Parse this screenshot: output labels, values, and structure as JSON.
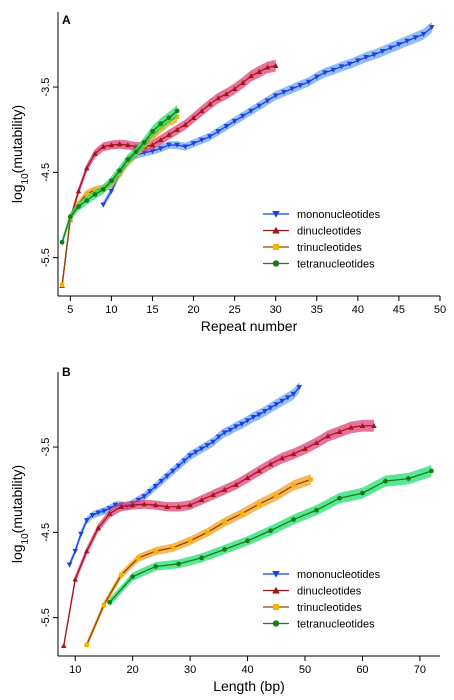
{
  "colors": {
    "mono": "#1f3fe8",
    "mono_band": "#6fa8f0",
    "di": "#a01818",
    "di_band": "#e0407a",
    "tri": "#f3b400",
    "tri_line": "#8a4a00",
    "tri_band": "#f6a020",
    "tetra": "#1a7a1a",
    "tetra_band": "#20e070"
  },
  "chart_data": [
    {
      "type": "line",
      "panel_label": "A",
      "xlabel": "Repeat number",
      "ylabel": "log10(mutability)",
      "ylabel_parts": {
        "pre": "log",
        "sub": "10",
        "post": "(mutability)"
      },
      "xlim": [
        3.5,
        50
      ],
      "ylim": [
        -5.95,
        -2.62
      ],
      "xticks": [
        5,
        10,
        15,
        20,
        25,
        30,
        35,
        40,
        45,
        50
      ],
      "yticks": [
        -5.5,
        -4.5,
        -3.5
      ],
      "ytick_labels": [
        "-5.5",
        "-4.5",
        "-3.5"
      ],
      "legend_position": "bottom-right",
      "series": [
        {
          "name": "mononucleotides",
          "key": "mono",
          "marker": "triangle-down",
          "x": [
            9,
            10,
            11,
            12,
            13,
            14,
            15,
            16,
            17,
            18,
            19,
            20,
            21,
            22,
            23,
            24,
            25,
            26,
            27,
            28,
            29,
            30,
            31,
            32,
            33,
            34,
            35,
            36,
            37,
            38,
            39,
            40,
            41,
            42,
            43,
            44,
            45,
            46,
            47,
            48,
            49
          ],
          "y": [
            -4.88,
            -4.72,
            -4.52,
            -4.36,
            -4.3,
            -4.27,
            -4.25,
            -4.22,
            -4.18,
            -4.18,
            -4.2,
            -4.16,
            -4.12,
            -4.08,
            -4.02,
            -3.96,
            -3.9,
            -3.84,
            -3.78,
            -3.72,
            -3.66,
            -3.6,
            -3.56,
            -3.52,
            -3.48,
            -3.44,
            -3.38,
            -3.33,
            -3.3,
            -3.26,
            -3.23,
            -3.19,
            -3.15,
            -3.12,
            -3.08,
            -3.04,
            -3.0,
            -2.96,
            -2.92,
            -2.88,
            -2.8
          ]
        },
        {
          "name": "dinucleotides",
          "key": "di",
          "marker": "triangle-up",
          "x": [
            4,
            5,
            6,
            7,
            8,
            9,
            10,
            11,
            12,
            13,
            14,
            15,
            16,
            17,
            18,
            19,
            20,
            21,
            22,
            23,
            24,
            25,
            26,
            27,
            28,
            29,
            30
          ],
          "y": [
            -5.83,
            -5.05,
            -4.72,
            -4.45,
            -4.28,
            -4.2,
            -4.18,
            -4.17,
            -4.18,
            -4.2,
            -4.2,
            -4.18,
            -4.12,
            -4.06,
            -4.0,
            -3.94,
            -3.86,
            -3.78,
            -3.7,
            -3.63,
            -3.58,
            -3.52,
            -3.45,
            -3.37,
            -3.32,
            -3.27,
            -3.25
          ]
        },
        {
          "name": "trinucleotides",
          "key": "tri",
          "marker": "square",
          "x": [
            4,
            5,
            6,
            7,
            8,
            9,
            10,
            11,
            12,
            13,
            14,
            15,
            16,
            17,
            18
          ],
          "y": [
            -5.82,
            -5.04,
            -4.87,
            -4.75,
            -4.71,
            -4.69,
            -4.63,
            -4.52,
            -4.38,
            -4.28,
            -4.17,
            -4.07,
            -3.98,
            -3.9,
            -3.85
          ]
        },
        {
          "name": "tetranucleotides",
          "key": "tetra",
          "marker": "circle",
          "x": [
            4,
            5,
            6,
            7,
            8,
            9,
            10,
            11,
            12,
            13,
            14,
            15,
            16,
            17,
            18
          ],
          "y": [
            -5.32,
            -5.02,
            -4.9,
            -4.83,
            -4.76,
            -4.7,
            -4.6,
            -4.48,
            -4.35,
            -4.26,
            -4.15,
            -4.02,
            -3.93,
            -3.86,
            -3.78
          ]
        }
      ]
    },
    {
      "type": "line",
      "panel_label": "B",
      "xlabel": "Length (bp)",
      "ylabel": "log10(mutability)",
      "ylabel_parts": {
        "pre": "log",
        "sub": "10",
        "post": "(mutability)"
      },
      "xlim": [
        7,
        73.5
      ],
      "ylim": [
        -5.95,
        -2.62
      ],
      "xticks": [
        10,
        20,
        30,
        40,
        50,
        60,
        70
      ],
      "yticks": [
        -5.5,
        -4.5,
        -3.5
      ],
      "ytick_labels": [
        "-5.5",
        "-4.5",
        "-3.5"
      ],
      "legend_position": "bottom-right",
      "series": [
        {
          "name": "mononucleotides",
          "key": "mono",
          "marker": "triangle-down",
          "x": [
            9,
            10,
            11,
            12,
            13,
            14,
            15,
            16,
            17,
            18,
            19,
            20,
            21,
            22,
            23,
            24,
            25,
            26,
            27,
            28,
            29,
            30,
            31,
            32,
            33,
            34,
            35,
            36,
            37,
            38,
            39,
            40,
            41,
            42,
            43,
            44,
            45,
            46,
            47,
            48,
            49
          ],
          "y": [
            -4.88,
            -4.72,
            -4.52,
            -4.36,
            -4.3,
            -4.27,
            -4.25,
            -4.22,
            -4.18,
            -4.18,
            -4.2,
            -4.16,
            -4.12,
            -4.08,
            -4.02,
            -3.96,
            -3.9,
            -3.84,
            -3.78,
            -3.72,
            -3.66,
            -3.6,
            -3.56,
            -3.52,
            -3.48,
            -3.44,
            -3.38,
            -3.33,
            -3.3,
            -3.26,
            -3.23,
            -3.19,
            -3.15,
            -3.12,
            -3.08,
            -3.04,
            -3.0,
            -2.96,
            -2.92,
            -2.88,
            -2.8
          ]
        },
        {
          "name": "dinucleotides",
          "key": "di",
          "marker": "triangle-up",
          "x": [
            8,
            10,
            12,
            14,
            16,
            18,
            20,
            22,
            24,
            26,
            28,
            30,
            32,
            34,
            36,
            38,
            40,
            42,
            44,
            46,
            48,
            50,
            52,
            54,
            56,
            58,
            60,
            62
          ],
          "y": [
            -5.83,
            -5.05,
            -4.72,
            -4.45,
            -4.28,
            -4.2,
            -4.18,
            -4.17,
            -4.18,
            -4.2,
            -4.2,
            -4.18,
            -4.12,
            -4.06,
            -4.0,
            -3.94,
            -3.86,
            -3.78,
            -3.7,
            -3.63,
            -3.58,
            -3.52,
            -3.45,
            -3.37,
            -3.32,
            -3.27,
            -3.25,
            -3.25
          ]
        },
        {
          "name": "trinucleotides",
          "key": "tri",
          "marker": "square",
          "x": [
            12,
            15,
            18,
            21,
            24,
            27,
            30,
            33,
            36,
            39,
            42,
            45,
            48,
            51
          ],
          "y": [
            -5.82,
            -5.35,
            -5.0,
            -4.8,
            -4.72,
            -4.68,
            -4.6,
            -4.5,
            -4.38,
            -4.28,
            -4.17,
            -4.07,
            -3.95,
            -3.88
          ]
        },
        {
          "name": "tetranucleotides",
          "key": "tetra",
          "marker": "circle",
          "x": [
            16,
            20,
            24,
            28,
            32,
            36,
            40,
            44,
            48,
            52,
            56,
            60,
            64,
            68,
            72
          ],
          "y": [
            -5.32,
            -5.02,
            -4.9,
            -4.87,
            -4.8,
            -4.7,
            -4.6,
            -4.48,
            -4.35,
            -4.24,
            -4.1,
            -4.04,
            -3.9,
            -3.87,
            -3.78
          ]
        }
      ]
    }
  ]
}
